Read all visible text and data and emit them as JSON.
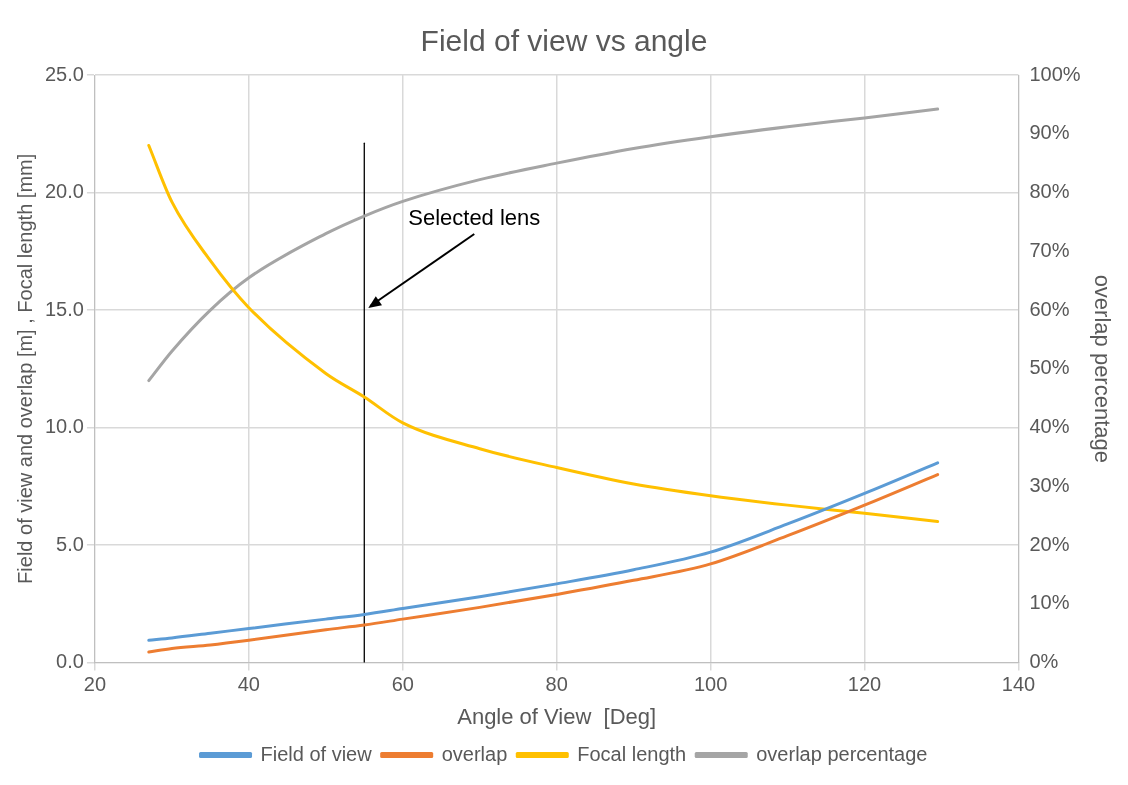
{
  "chart_data": {
    "type": "line",
    "title": "Field of view vs angle",
    "xlabel": "Angle of View  [Deg]",
    "ylabel": "Field of view and overlap [m] , Focal length [mm]",
    "y2label": "overlap percentage",
    "x": [
      27,
      30,
      35,
      40,
      50,
      55,
      60,
      70,
      80,
      90,
      100,
      110,
      120,
      129.5
    ],
    "series": [
      {
        "name": "Field of view",
        "color": "#5b9bd5",
        "values": [
          0.95,
          1.05,
          1.25,
          1.45,
          1.85,
          2.05,
          2.3,
          2.8,
          3.35,
          3.95,
          4.7,
          5.9,
          7.2,
          8.5
        ]
      },
      {
        "name": "overlap",
        "color": "#ed7d31",
        "values": [
          0.45,
          0.6,
          0.75,
          0.95,
          1.4,
          1.6,
          1.85,
          2.35,
          2.9,
          3.5,
          4.2,
          5.4,
          6.7,
          8.0
        ]
      },
      {
        "name": "Focal length",
        "color": "#ffc000",
        "values": [
          22.0,
          19.6,
          17.1,
          15.1,
          12.3,
          11.3,
          10.2,
          9.1,
          8.3,
          7.6,
          7.1,
          6.7,
          6.35,
          6.0
        ]
      },
      {
        "name": "overlap percentage",
        "color": "#a5a5a5",
        "axis": "y2",
        "values": [
          48,
          53,
          60,
          65.5,
          73,
          76,
          78.5,
          82.2,
          85,
          87.5,
          89.5,
          91.2,
          92.7,
          94.2
        ]
      },
      {
        "color": "#000000",
        "x": [
          55,
          55
        ],
        "values": [
          0,
          22.1
        ]
      }
    ],
    "xlim": [
      20,
      140
    ],
    "xticks": [
      20,
      40,
      60,
      80,
      100,
      120,
      140
    ],
    "ylim": [
      0,
      25
    ],
    "yticks": [
      {
        "value": 0,
        "label": "0.0"
      },
      {
        "value": 5,
        "label": "5.0"
      },
      {
        "value": 10,
        "label": "10.0"
      },
      {
        "value": 15,
        "label": "15.0"
      },
      {
        "value": 20,
        "label": "20.0"
      },
      {
        "value": 25,
        "label": "25.0"
      }
    ],
    "y2lim": [
      0,
      100
    ],
    "y2ticks": [
      {
        "value": 0,
        "label": "0%"
      },
      {
        "value": 10,
        "label": "10%"
      },
      {
        "value": 20,
        "label": "20%"
      },
      {
        "value": 30,
        "label": "30%"
      },
      {
        "value": 40,
        "label": "40%"
      },
      {
        "value": 50,
        "label": "50%"
      },
      {
        "value": 60,
        "label": "60%"
      },
      {
        "value": 70,
        "label": "70%"
      },
      {
        "value": 80,
        "label": "80%"
      },
      {
        "value": 90,
        "label": "90%"
      },
      {
        "value": 100,
        "label": "100%"
      }
    ],
    "annotations": [
      {
        "text": "Selected lens",
        "x": 55,
        "y": 15
      }
    ],
    "grid": true,
    "legend": "bottom",
    "marker": "none",
    "line_style": "solid"
  }
}
